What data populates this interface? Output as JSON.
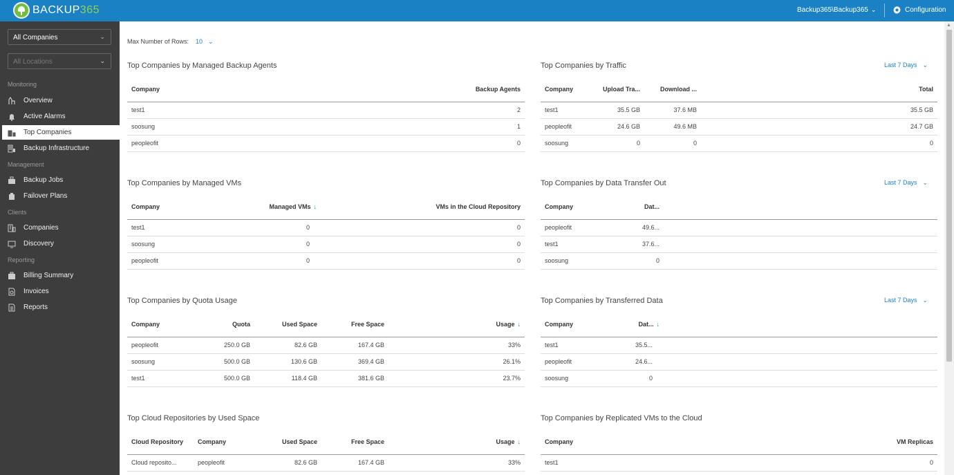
{
  "header": {
    "brand_prefix": "BACKUP",
    "brand_suffix": "365",
    "user": "Backup365\\Backup365",
    "config_label": "Configuration"
  },
  "sidebar": {
    "companies_select": "All Companies",
    "locations_select": "All Locations",
    "sections": {
      "monitoring": "Monitoring",
      "management": "Management",
      "clients": "Clients",
      "reporting": "Reporting"
    },
    "items": [
      {
        "label": "Overview",
        "icon": "overview-icon"
      },
      {
        "label": "Active Alarms",
        "icon": "bell-icon"
      },
      {
        "label": "Top Companies",
        "icon": "top-companies-icon",
        "active": true
      },
      {
        "label": "Backup Infrastructure",
        "icon": "infrastructure-icon"
      },
      {
        "label": "Backup Jobs",
        "icon": "backup-jobs-icon"
      },
      {
        "label": "Failover Plans",
        "icon": "failover-icon"
      },
      {
        "label": "Companies",
        "icon": "companies-icon"
      },
      {
        "label": "Discovery",
        "icon": "discovery-icon"
      },
      {
        "label": "Billing Summary",
        "icon": "billing-icon"
      },
      {
        "label": "Invoices",
        "icon": "invoices-icon"
      },
      {
        "label": "Reports",
        "icon": "reports-icon"
      }
    ]
  },
  "main": {
    "max_rows_label": "Max Number of Rows:",
    "max_rows_value": "10",
    "period_label": "Last 7 Days",
    "agents": {
      "title": "Top Companies by Managed Backup Agents",
      "headers": [
        "Company",
        "Backup Agents"
      ],
      "rows": [
        [
          "test1",
          "2"
        ],
        [
          "soosung",
          "1"
        ],
        [
          "peopleofit",
          "0"
        ]
      ]
    },
    "traffic": {
      "title": "Top Companies by Traffic",
      "headers": [
        "Company",
        "Upload Tra...",
        "Download ...",
        "Total"
      ],
      "rows": [
        [
          "test1",
          "35.5 GB",
          "37.6 MB",
          "35.5 GB"
        ],
        [
          "peopleofit",
          "24.6 GB",
          "49.6 MB",
          "24.7 GB"
        ],
        [
          "soosung",
          "0",
          "0",
          "0"
        ]
      ]
    },
    "vms": {
      "title": "Top Companies by Managed VMs",
      "headers": [
        "Company",
        "Managed VMs",
        "VMs in the Cloud Repository"
      ],
      "rows": [
        [
          "test1",
          "0",
          "0"
        ],
        [
          "soosung",
          "0",
          "0"
        ],
        [
          "peopleofit",
          "0",
          "0"
        ]
      ]
    },
    "transfer_out": {
      "title": "Top Companies by Data Transfer Out",
      "headers": [
        "Company",
        "Dat..."
      ],
      "rows": [
        [
          "peopleofit",
          "49.6..."
        ],
        [
          "test1",
          "37.6..."
        ],
        [
          "soosung",
          "0"
        ]
      ]
    },
    "quota": {
      "title": "Top Companies by Quota Usage",
      "headers": [
        "Company",
        "Quota",
        "Used Space",
        "Free Space",
        "Usage"
      ],
      "rows": [
        [
          "peopleofit",
          "250.0 GB",
          "82.6 GB",
          "167.4 GB",
          "33%"
        ],
        [
          "soosung",
          "500.0 GB",
          "130.6 GB",
          "369.4 GB",
          "26.1%"
        ],
        [
          "test1",
          "500.0 GB",
          "118.4 GB",
          "381.6 GB",
          "23.7%"
        ]
      ]
    },
    "transferred": {
      "title": "Top Companies by Transferred Data",
      "headers": [
        "Company",
        "Dat..."
      ],
      "rows": [
        [
          "test1",
          "35.5..."
        ],
        [
          "peopleofit",
          "24.6..."
        ],
        [
          "soosung",
          "0"
        ]
      ]
    },
    "repos": {
      "title": "Top Cloud Repositories by Used Space",
      "headers": [
        "Cloud Repository",
        "Company",
        "Used Space",
        "Free Space",
        "Usage"
      ],
      "rows": [
        [
          "Cloud reposito...",
          "peopleofit",
          "82.6 GB",
          "167.4 GB",
          "33%"
        ]
      ]
    },
    "replicas": {
      "title": "Top Companies by Replicated VMs to the Cloud",
      "headers": [
        "Company",
        "VM Replicas"
      ],
      "rows": [
        [
          "test1",
          "0"
        ]
      ]
    }
  }
}
